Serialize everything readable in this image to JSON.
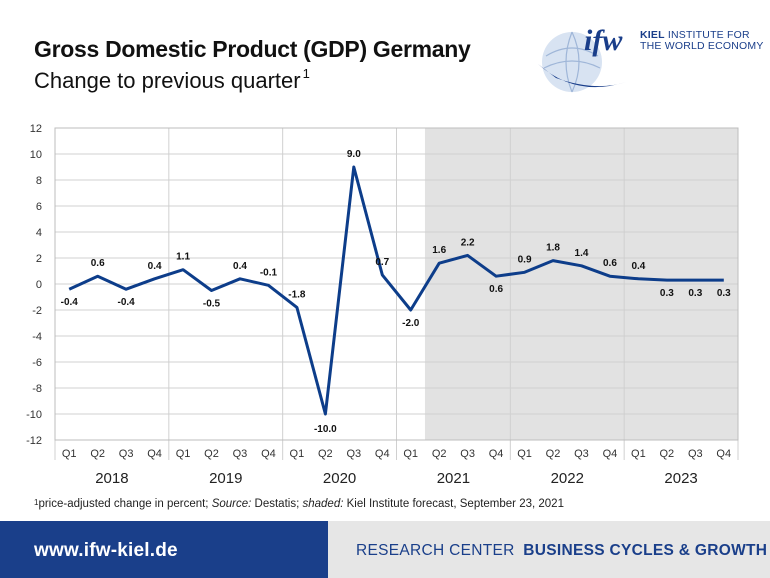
{
  "header": {
    "title": "Gross Domestic Product (GDP) Germany",
    "subtitle": "Change to previous quarter",
    "subtitle_note": "1"
  },
  "logo": {
    "mark": "ifw",
    "line1_bold": "KIEL",
    "line1_rest": " INSTITUTE FOR",
    "line2": "THE WORLD ECONOMY"
  },
  "chart_data": {
    "type": "line",
    "ylim": [
      -12,
      12
    ],
    "yticks": [
      12,
      10,
      8,
      6,
      4,
      2,
      0,
      -2,
      -4,
      -6,
      -8,
      -10,
      -12
    ],
    "x": [
      "Q1",
      "Q2",
      "Q3",
      "Q4",
      "Q1",
      "Q2",
      "Q3",
      "Q4",
      "Q1",
      "Q2",
      "Q3",
      "Q4",
      "Q1",
      "Q2",
      "Q3",
      "Q4",
      "Q1",
      "Q2",
      "Q3",
      "Q4",
      "Q1",
      "Q2",
      "Q3",
      "Q4"
    ],
    "years": [
      "2018",
      "2019",
      "2020",
      "2021",
      "2022",
      "2023"
    ],
    "series": [
      {
        "values": [
          -0.4,
          0.6,
          -0.4,
          0.4,
          1.1,
          -0.5,
          0.4,
          -0.1,
          -1.8,
          -10.0,
          9.0,
          0.7,
          -2.0,
          1.6,
          2.2,
          0.6,
          0.9,
          1.8,
          1.4,
          0.6,
          0.4,
          0.3,
          0.3,
          0.3
        ],
        "labels": [
          "-0.4",
          "0.6",
          "-0.4",
          "0.4",
          "1.1",
          "-0.5",
          "0.4",
          "-0.1",
          "-1.8",
          "-10.0",
          "9.0",
          "0.7",
          "-2.0",
          "1.6",
          "2.2",
          "0.6",
          "0.9",
          "1.8",
          "1.4",
          "0.6",
          "0.4",
          "0.3",
          "0.3",
          "0.3"
        ]
      }
    ],
    "forecast_start_index": 14,
    "grid": true,
    "colors": {
      "line": "#0d3d8a",
      "forecast_shade": "#e2e2e2",
      "grid": "#d0d0d0"
    }
  },
  "footnote": {
    "marker": "1",
    "text_a": "price-adjusted change in percent; ",
    "source_label": "Source:",
    "text_b": " Destatis; ",
    "shaded_label": "shaded:",
    "text_c": " Kiel Institute forecast, September 23, 2021"
  },
  "footer": {
    "url": "www.ifw-kiel.de",
    "research_center": "RESEARCH CENTER",
    "department": "BUSINESS CYCLES & GROWTH"
  }
}
